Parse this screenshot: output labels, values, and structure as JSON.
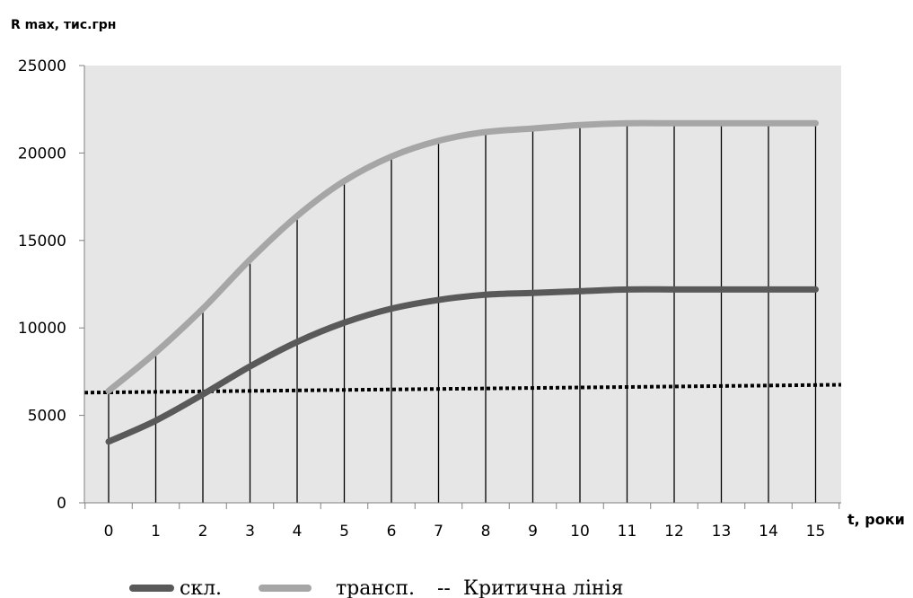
{
  "chart_data": {
    "type": "line",
    "ylabel": "R max, тис.грн",
    "xlabel": "t, роки",
    "x": [
      0,
      1,
      2,
      3,
      4,
      5,
      6,
      7,
      8,
      9,
      10,
      11,
      12,
      13,
      14,
      15
    ],
    "y_ticks": [
      "0",
      "5000",
      "10000",
      "15000",
      "20000",
      "25000"
    ],
    "ylim": [
      0,
      25000
    ],
    "grid": "vertical drop lines at each x",
    "legend_position": "bottom",
    "series": [
      {
        "name": "скл.",
        "color": "#595959",
        "values": [
          3500,
          4700,
          6200,
          7800,
          9200,
          10300,
          11100,
          11600,
          11900,
          12000,
          12100,
          12200,
          12200,
          12200,
          12200,
          12200
        ]
      },
      {
        "name": "трансп.",
        "color": "#a6a6a6",
        "values": [
          6400,
          8600,
          11100,
          13900,
          16400,
          18400,
          19800,
          20700,
          21200,
          21400,
          21600,
          21700,
          21700,
          21700,
          21700,
          21700
        ]
      },
      {
        "name": "Критична лінія",
        "color": "#000000",
        "style": "dotted",
        "start_value": 6300,
        "end_value": 6750
      }
    ],
    "legend_labels": [
      "скл.",
      "трансп.",
      "Критична лінія"
    ],
    "legend_marker_dashed": "--"
  }
}
